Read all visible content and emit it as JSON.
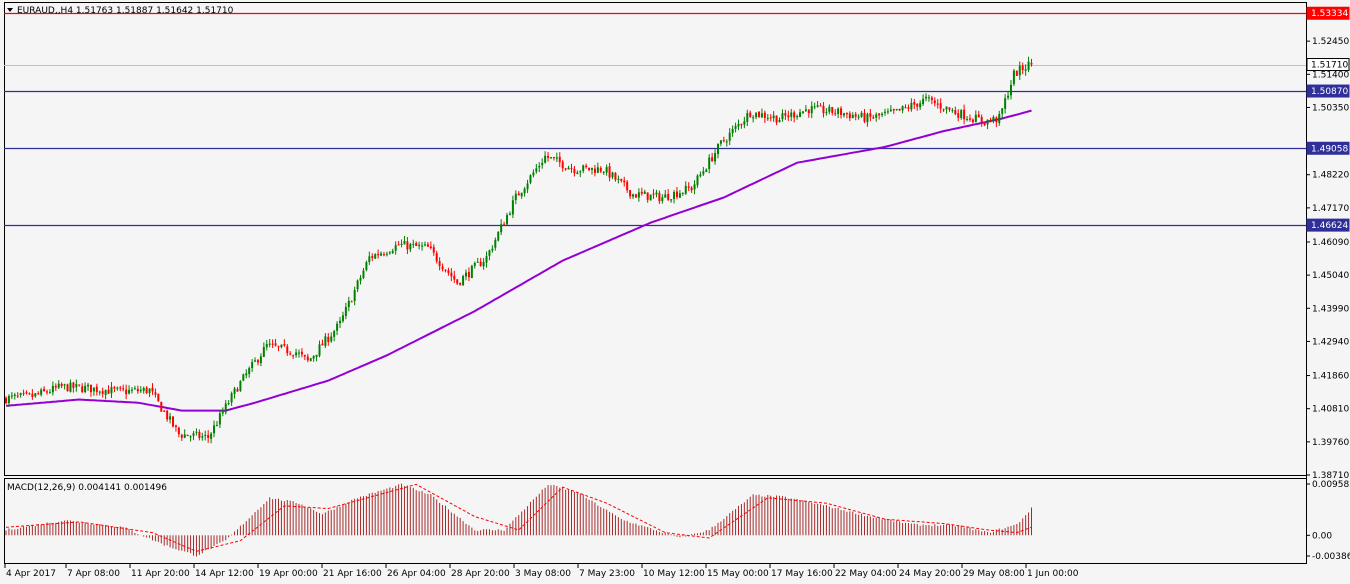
{
  "header": {
    "symbol_label": "EURAUD,,H4  1.51763 1.51887 1.51642 1.51710"
  },
  "macd": {
    "label": "MACD(12,26,9) 0.004141 0.001496",
    "ticks": [
      "0.009582",
      "0.00",
      "-0.003866"
    ],
    "hist_color": "#a52a2a",
    "signal_color": "#ff0000"
  },
  "colors": {
    "background": "#f5f5f5",
    "bull_candle": "#008000",
    "bear_candle": "#ff0000",
    "moving_average": "#9400d3",
    "support_line": "#2f2f9a",
    "resistance_line": "#ff0000",
    "bid_line": "#c0c0c0"
  },
  "chart_data": {
    "type": "candlestick",
    "timeframe": "H4",
    "symbol": "EURAUD",
    "ohlc_last": {
      "open": 1.51763,
      "high": 1.51887,
      "low": 1.51642,
      "close": 1.5171
    },
    "ylim": [
      1.3871,
      1.5369
    ],
    "y_ticks": [
      1.5245,
      1.514,
      1.5035,
      1.4822,
      1.4717,
      1.4609,
      1.4504,
      1.4399,
      1.4294,
      1.4186,
      1.4081,
      1.3976,
      1.3871
    ],
    "x_ticks": [
      "4 Apr 2017",
      "7 Apr 08:00",
      "11 Apr 20:00",
      "14 Apr 12:00",
      "19 Apr 00:00",
      "21 Apr 16:00",
      "26 Apr 04:00",
      "28 Apr 20:00",
      "3 May 08:00",
      "7 May 23:00",
      "10 May 12:00",
      "15 May 00:00",
      "17 May 16:00",
      "22 May 04:00",
      "24 May 20:00",
      "29 May 08:00",
      "1 Jun 00:00"
    ],
    "horizontal_levels": [
      {
        "value": 1.53334,
        "label": "1.53334",
        "color": "#ff0000"
      },
      {
        "value": 1.5171,
        "label": "1.51710",
        "color": "#c0c0c0"
      },
      {
        "value": 1.5087,
        "label": "1.50870",
        "color": "#2f2f9a"
      },
      {
        "value": 1.49058,
        "label": "1.49058",
        "color": "#2f2f9a"
      },
      {
        "value": 1.46624,
        "label": "1.46624",
        "color": "#2f2f9a"
      }
    ],
    "price_anchors": [
      [
        0,
        1.4113
      ],
      [
        10,
        1.412
      ],
      [
        20,
        1.415
      ],
      [
        30,
        1.4145
      ],
      [
        40,
        1.4135
      ],
      [
        50,
        1.414
      ],
      [
        60,
        1.4
      ],
      [
        70,
        1.399
      ],
      [
        80,
        1.415
      ],
      [
        90,
        1.428
      ],
      [
        100,
        1.426
      ],
      [
        104,
        1.423
      ],
      [
        115,
        1.435
      ],
      [
        125,
        1.456
      ],
      [
        135,
        1.46
      ],
      [
        145,
        1.459
      ],
      [
        155,
        1.448
      ],
      [
        165,
        1.456
      ],
      [
        175,
        1.475
      ],
      [
        185,
        1.488
      ],
      [
        195,
        1.484
      ],
      [
        205,
        1.484
      ],
      [
        215,
        1.476
      ],
      [
        225,
        1.475
      ],
      [
        235,
        1.478
      ],
      [
        245,
        1.492
      ],
      [
        255,
        1.502
      ],
      [
        265,
        1.5
      ],
      [
        275,
        1.503
      ],
      [
        285,
        1.502
      ],
      [
        295,
        1.5
      ],
      [
        305,
        1.502
      ],
      [
        315,
        1.506
      ],
      [
        325,
        1.502
      ],
      [
        335,
        1.499
      ],
      [
        340,
        1.5
      ],
      [
        345,
        1.514
      ],
      [
        350,
        1.5171
      ]
    ],
    "ma_anchors": [
      [
        0,
        1.409
      ],
      [
        25,
        1.411
      ],
      [
        45,
        1.41
      ],
      [
        60,
        1.4075
      ],
      [
        75,
        1.4075
      ],
      [
        85,
        1.41
      ],
      [
        110,
        1.417
      ],
      [
        130,
        1.425
      ],
      [
        160,
        1.439
      ],
      [
        190,
        1.455
      ],
      [
        220,
        1.467
      ],
      [
        245,
        1.475
      ],
      [
        270,
        1.486
      ],
      [
        300,
        1.491
      ],
      [
        320,
        1.496
      ],
      [
        340,
        1.5
      ],
      [
        350,
        1.5025
      ]
    ],
    "macd_anchors": [
      [
        0,
        0.001
      ],
      [
        20,
        0.0028
      ],
      [
        40,
        0.0015
      ],
      [
        55,
        -0.002
      ],
      [
        65,
        -0.0038
      ],
      [
        75,
        -0.001
      ],
      [
        90,
        0.007
      ],
      [
        100,
        0.006
      ],
      [
        108,
        0.004
      ],
      [
        120,
        0.007
      ],
      [
        135,
        0.0095
      ],
      [
        145,
        0.0075
      ],
      [
        160,
        0.001
      ],
      [
        170,
        0.001
      ],
      [
        185,
        0.0095
      ],
      [
        195,
        0.008
      ],
      [
        210,
        0.003
      ],
      [
        230,
        -0.0005
      ],
      [
        240,
        0.001
      ],
      [
        255,
        0.0075
      ],
      [
        265,
        0.0072
      ],
      [
        280,
        0.0055
      ],
      [
        295,
        0.0035
      ],
      [
        310,
        0.002
      ],
      [
        325,
        0.0018
      ],
      [
        335,
        0.0005
      ],
      [
        345,
        0.002
      ],
      [
        350,
        0.005
      ]
    ],
    "signal_anchors": [
      [
        0,
        0.0015
      ],
      [
        25,
        0.0025
      ],
      [
        50,
        0.0005
      ],
      [
        65,
        -0.003
      ],
      [
        80,
        -0.001
      ],
      [
        95,
        0.0055
      ],
      [
        110,
        0.005
      ],
      [
        130,
        0.008
      ],
      [
        140,
        0.0095
      ],
      [
        160,
        0.0035
      ],
      [
        175,
        0.001
      ],
      [
        190,
        0.009
      ],
      [
        205,
        0.006
      ],
      [
        225,
        0.0005
      ],
      [
        240,
        -0.0005
      ],
      [
        260,
        0.007
      ],
      [
        280,
        0.006
      ],
      [
        300,
        0.003
      ],
      [
        320,
        0.0022
      ],
      [
        335,
        0.001
      ],
      [
        345,
        0.0005
      ],
      [
        350,
        0.0015
      ]
    ]
  }
}
